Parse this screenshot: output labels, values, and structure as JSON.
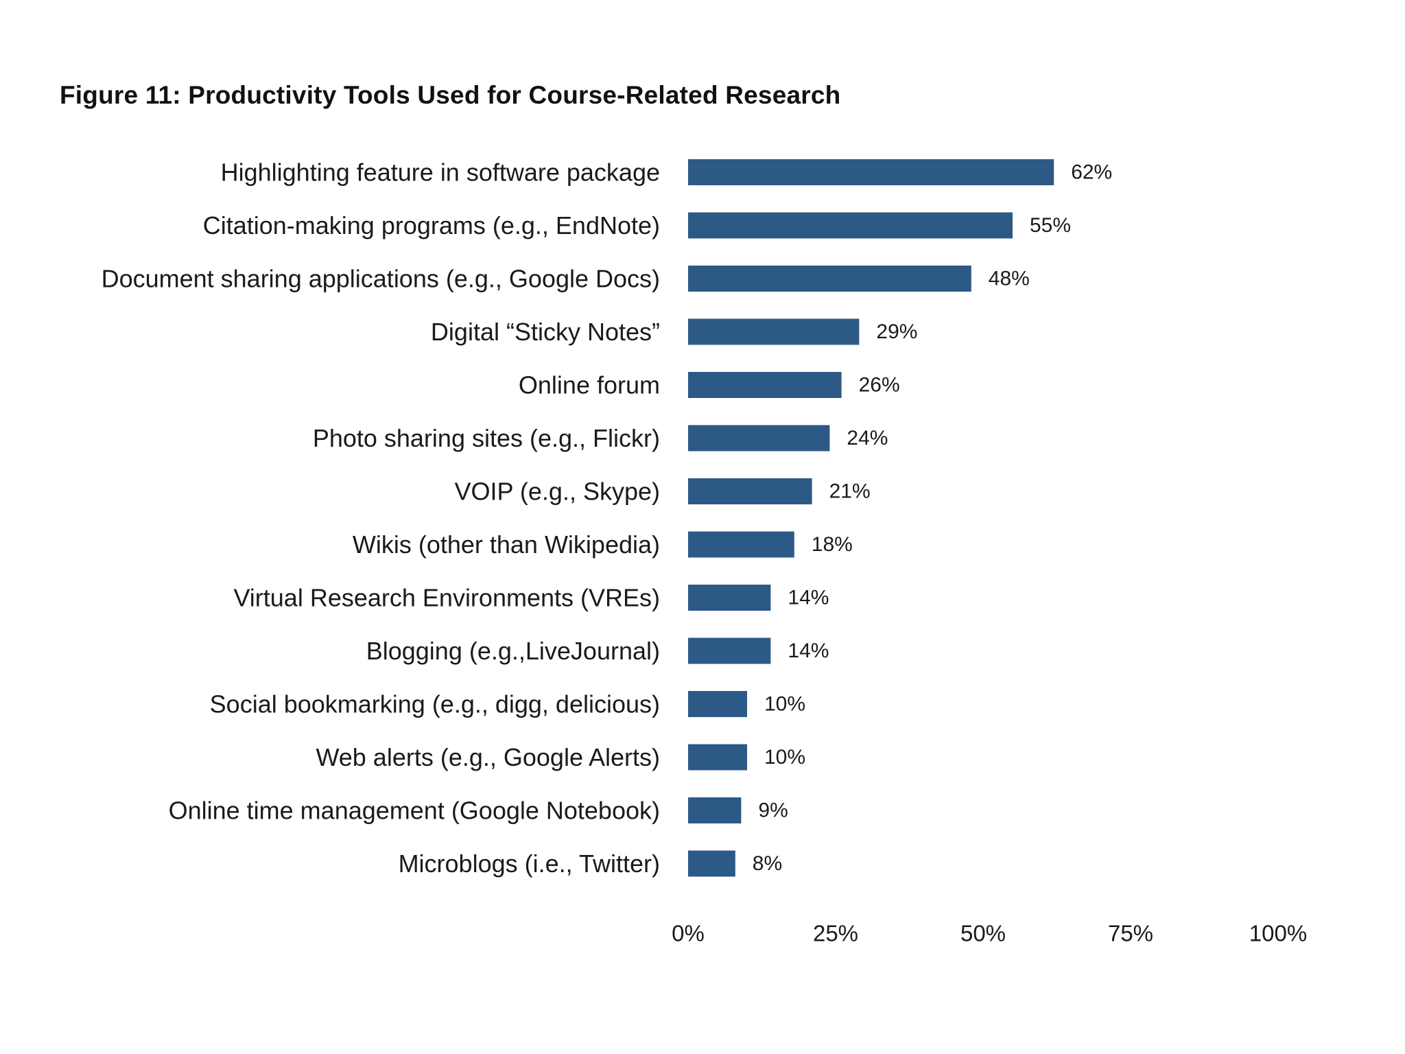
{
  "chart_data": {
    "type": "bar",
    "orientation": "horizontal",
    "title": "Figure 11: Productivity Tools Used for Course-Related Research",
    "categories": [
      "Highlighting feature in software package",
      "Citation-making programs (e.g., EndNote)",
      "Document sharing applications (e.g., Google Docs)",
      "Digital “Sticky Notes”",
      "Online forum",
      "Photo sharing sites (e.g., Flickr)",
      "VOIP (e.g., Skype)",
      "Wikis (other than Wikipedia)",
      "Virtual Research Environments (VREs)",
      "Blogging (e.g.,LiveJournal)",
      "Social bookmarking (e.g., digg, delicious)",
      "Web alerts (e.g., Google Alerts)",
      "Online time management (Google Notebook)",
      "Microblogs (i.e., Twitter)"
    ],
    "values": [
      62,
      55,
      48,
      29,
      26,
      24,
      21,
      18,
      14,
      14,
      10,
      10,
      9,
      8
    ],
    "value_labels": [
      "62%",
      "55%",
      "48%",
      "29%",
      "26%",
      "24%",
      "21%",
      "18%",
      "14%",
      "14%",
      "10%",
      "10%",
      "9%",
      "8%"
    ],
    "xlim": [
      0,
      100
    ],
    "x_ticks": [
      0,
      25,
      50,
      75,
      100
    ],
    "x_tick_labels": [
      "0%",
      "25%",
      "50%",
      "75%",
      "100%"
    ],
    "grid": false,
    "legend": "none",
    "bar_color": "#2d5986"
  }
}
